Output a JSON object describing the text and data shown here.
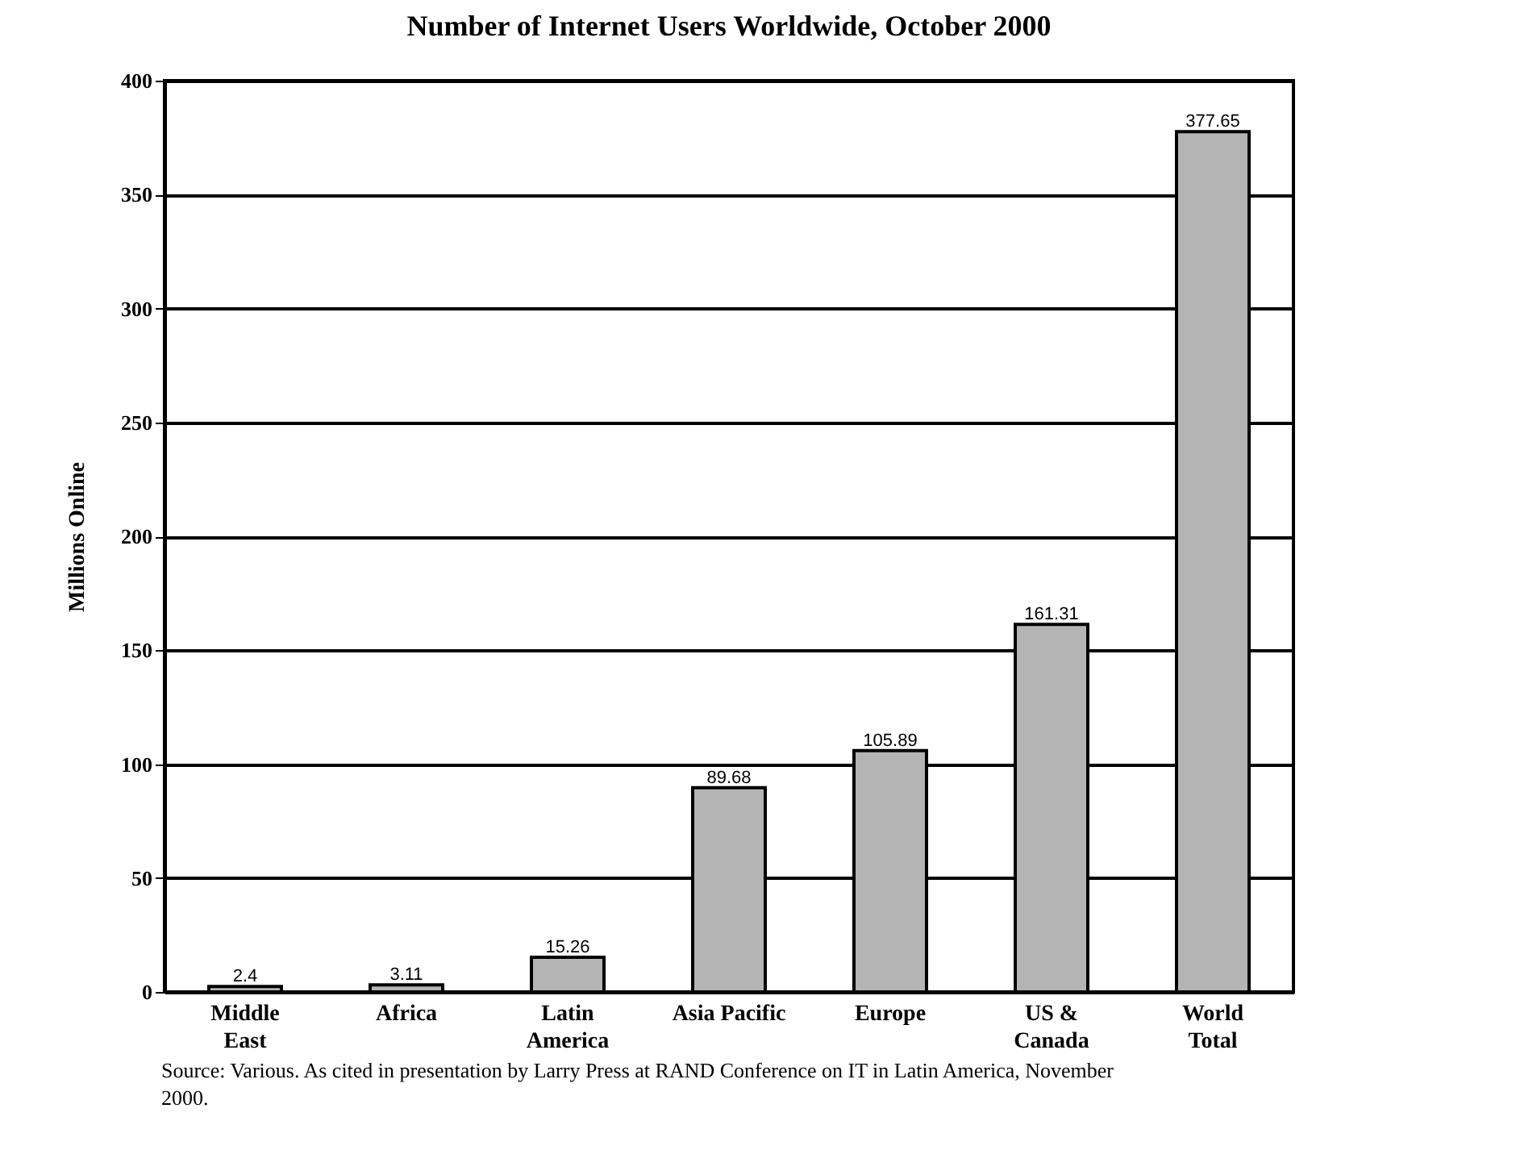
{
  "chart_data": {
    "type": "bar",
    "title": "Number of Internet Users Worldwide, October 2000",
    "ylabel": "Millions Online",
    "categories": [
      "Middle\nEast",
      "Africa",
      "Latin\nAmerica",
      "Asia Pacific",
      "Europe",
      "US &\nCanada",
      "World\nTotal"
    ],
    "values": [
      2.4,
      3.11,
      15.26,
      89.68,
      105.89,
      161.31,
      377.65
    ],
    "color": "#b4b4b4",
    "ylim": [
      0,
      400
    ],
    "yticks": [
      0,
      50,
      100,
      150,
      200,
      250,
      300,
      350,
      400
    ],
    "grid": "y",
    "data_labels": true,
    "annotations": [
      "Source:   Various. As cited in presentation by Larry Press at RAND Conference on IT in Latin America, November 2000."
    ]
  }
}
